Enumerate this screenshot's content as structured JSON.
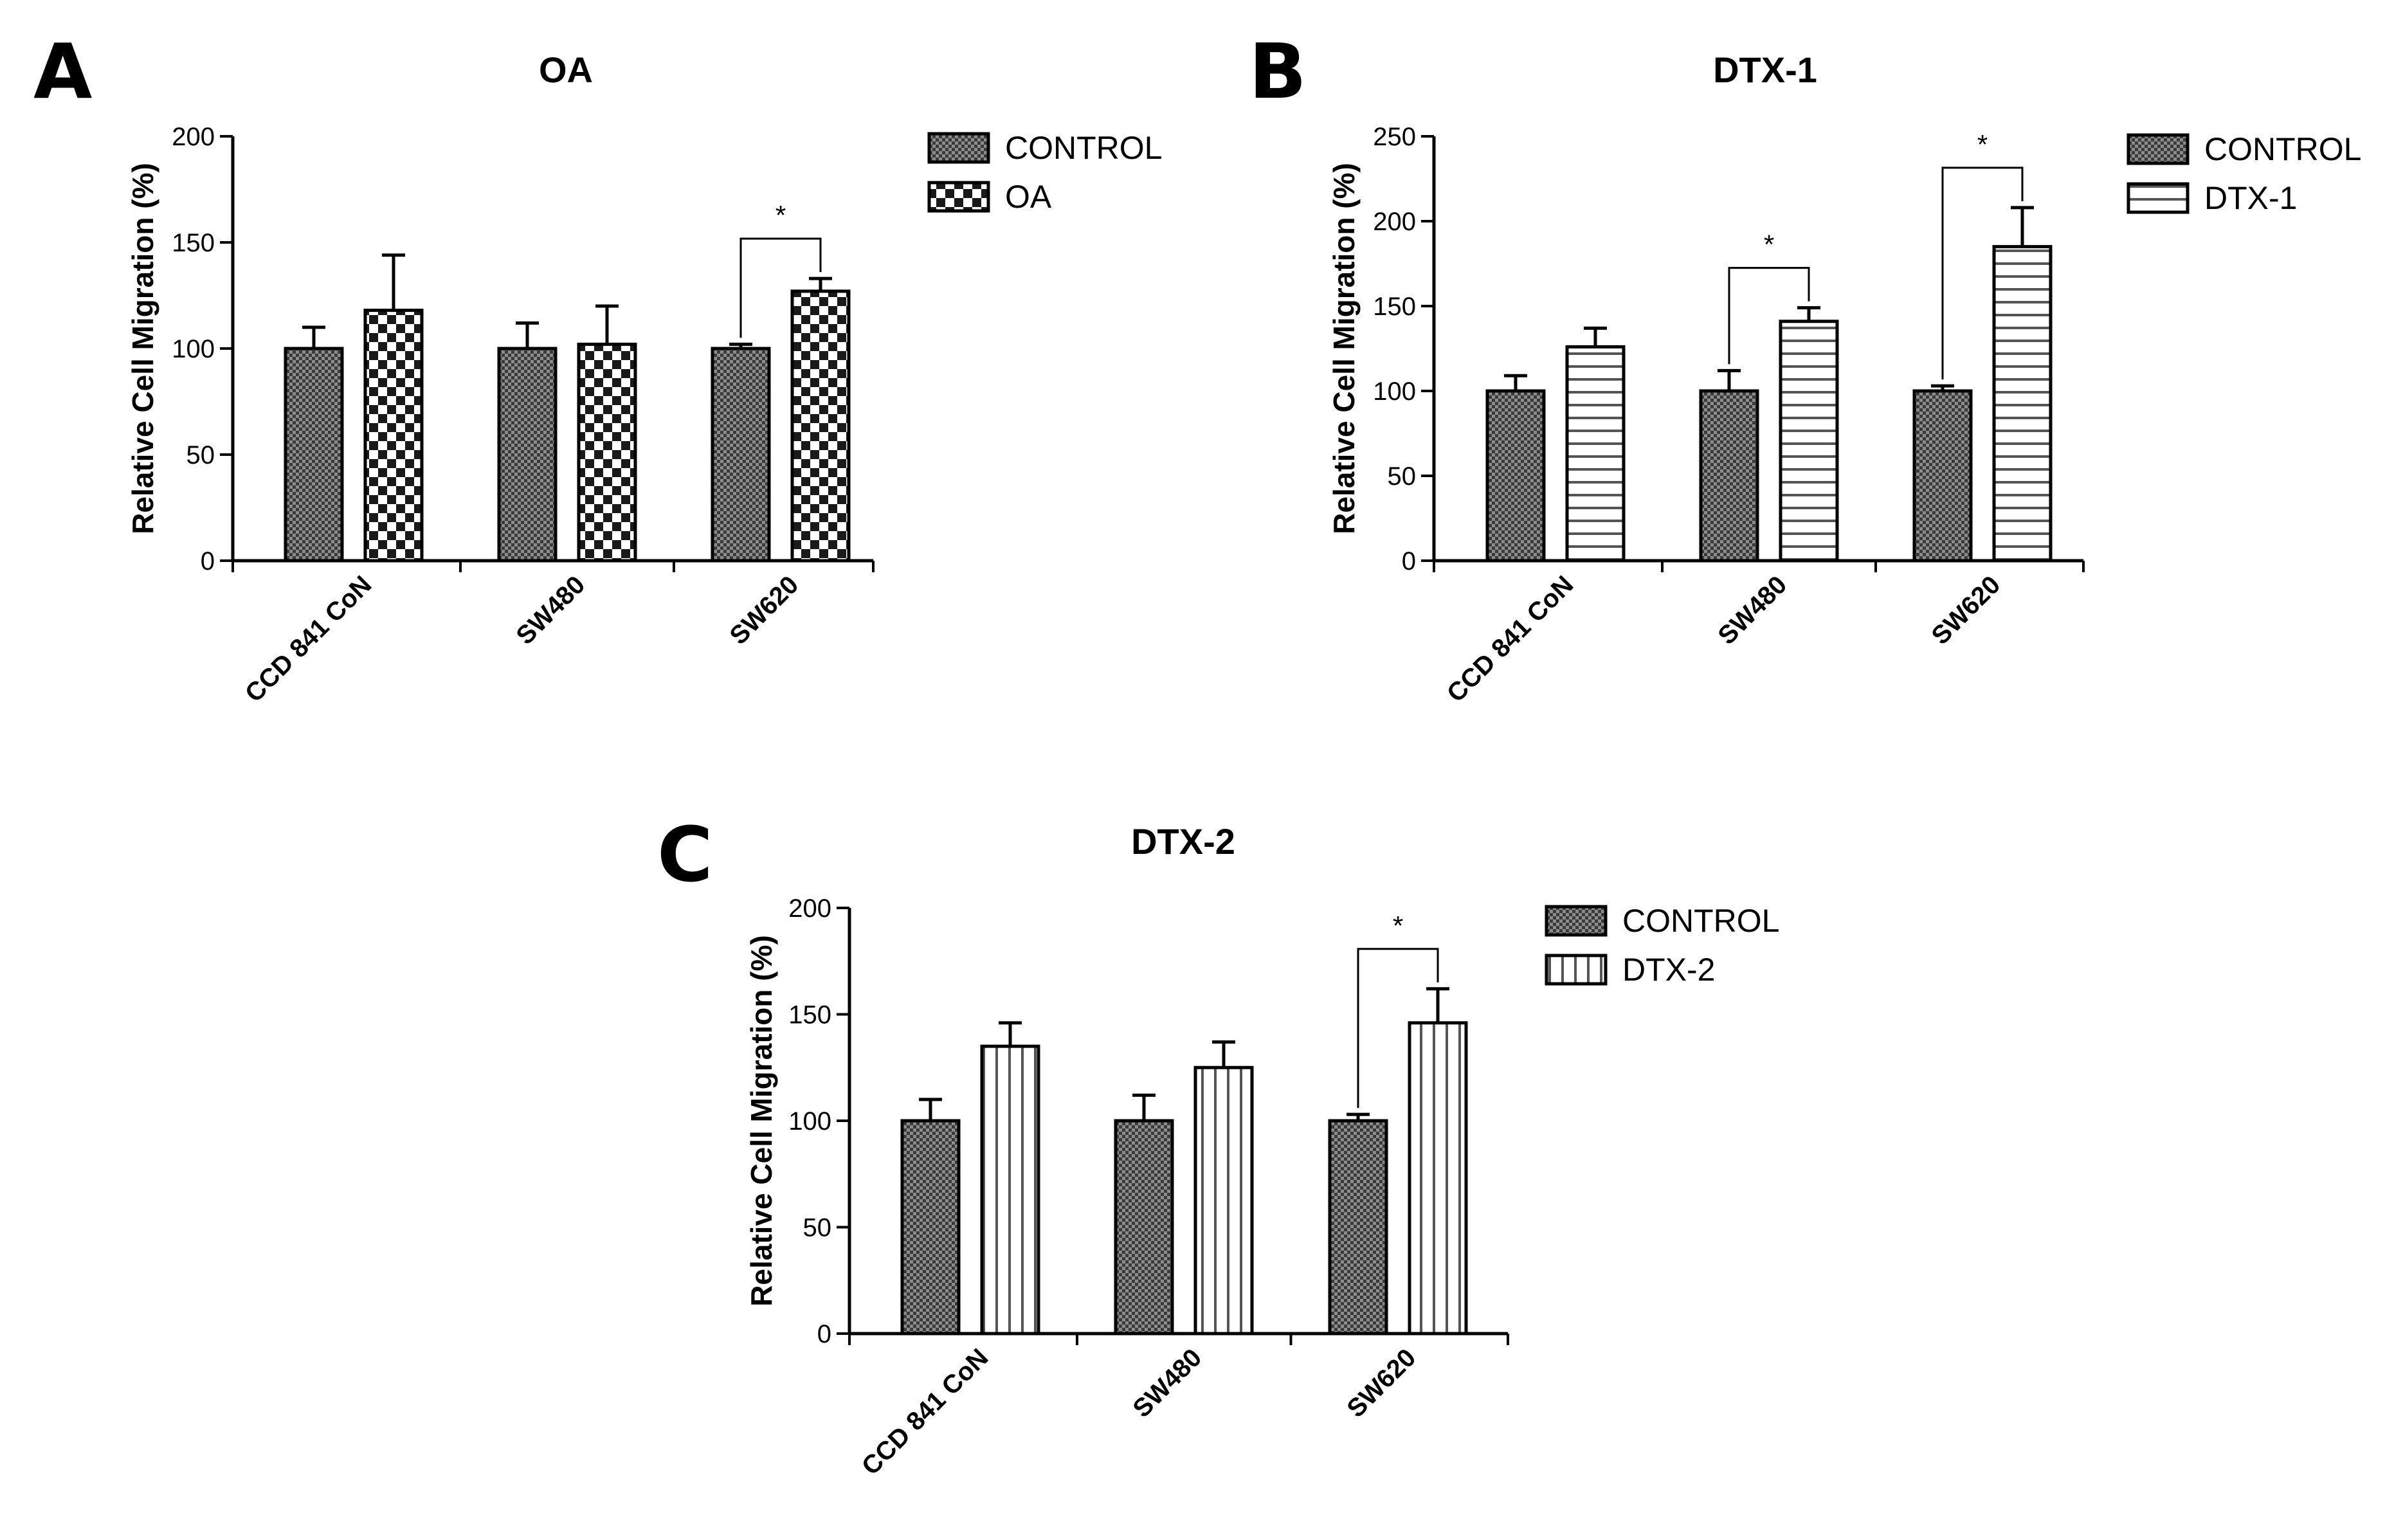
{
  "figure": {
    "panels": [
      "A",
      "B",
      "C"
    ]
  },
  "chart_data": [
    {
      "type": "bar",
      "panel": "A",
      "title": "OA",
      "xlabel": "",
      "ylabel": "Relative Cell Migration (%)",
      "ylim": [
        0,
        200
      ],
      "yticks": [
        0,
        50,
        100,
        150,
        200
      ],
      "categories": [
        "CCD 841 CoN",
        "SW480",
        "SW620"
      ],
      "series": [
        {
          "name": "CONTROL",
          "pattern": "fine-check",
          "values": [
            100,
            100,
            100
          ],
          "errors": [
            10,
            12,
            2
          ]
        },
        {
          "name": "OA",
          "pattern": "checker",
          "values": [
            118,
            102,
            127
          ],
          "errors": [
            26,
            18,
            6
          ]
        }
      ],
      "significance": [
        {
          "category": "SW620",
          "label": "*"
        }
      ],
      "legend": "top-right-outside"
    },
    {
      "type": "bar",
      "panel": "B",
      "title": "DTX-1",
      "xlabel": "",
      "ylabel": "Relative Cell Migration (%)",
      "ylim": [
        0,
        250
      ],
      "yticks": [
        0,
        50,
        100,
        150,
        200,
        250
      ],
      "categories": [
        "CCD 841 CoN",
        "SW480",
        "SW620"
      ],
      "series": [
        {
          "name": "CONTROL",
          "pattern": "fine-check",
          "values": [
            100,
            100,
            100
          ],
          "errors": [
            9,
            12,
            3
          ]
        },
        {
          "name": "DTX-1",
          "pattern": "horizontal-lines",
          "values": [
            126,
            141,
            185
          ],
          "errors": [
            11,
            8,
            23
          ]
        }
      ],
      "significance": [
        {
          "category": "SW480",
          "label": "*"
        },
        {
          "category": "SW620",
          "label": "*"
        }
      ],
      "legend": "top-right-outside"
    },
    {
      "type": "bar",
      "panel": "C",
      "title": "DTX-2",
      "xlabel": "",
      "ylabel": "Relative Cell Migration (%)",
      "ylim": [
        0,
        200
      ],
      "yticks": [
        0,
        50,
        100,
        150,
        200
      ],
      "categories": [
        "CCD 841 CoN",
        "SW480",
        "SW620"
      ],
      "series": [
        {
          "name": "CONTROL",
          "pattern": "fine-check",
          "values": [
            100,
            100,
            100
          ],
          "errors": [
            10,
            12,
            3
          ]
        },
        {
          "name": "DTX-2",
          "pattern": "vertical-lines",
          "values": [
            135,
            125,
            146
          ],
          "errors": [
            11,
            12,
            16
          ]
        }
      ],
      "significance": [
        {
          "category": "SW620",
          "label": "*"
        }
      ],
      "legend": "top-right-outside"
    }
  ]
}
